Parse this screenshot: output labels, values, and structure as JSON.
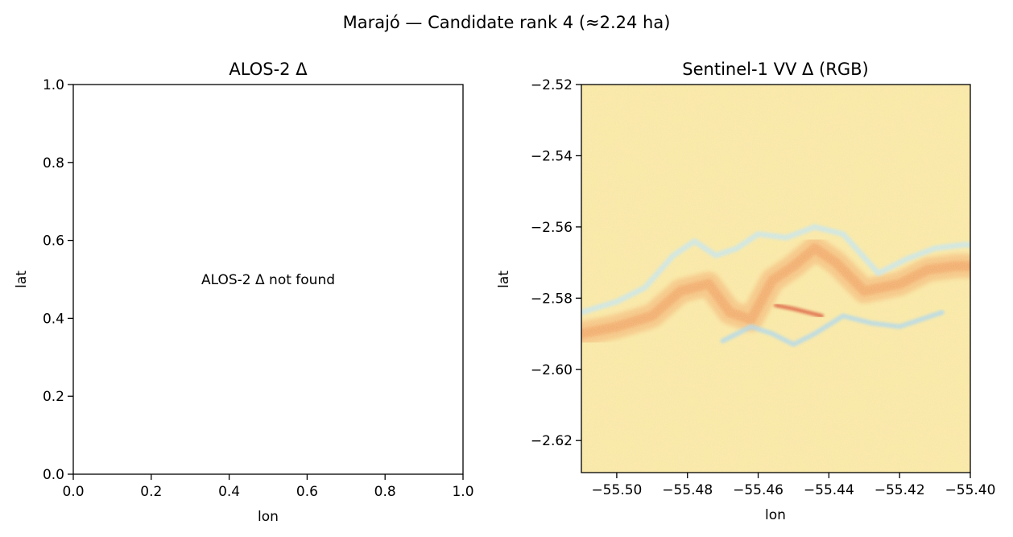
{
  "figure": {
    "suptitle": "Marajó — Candidate rank 4 (≈2.24 ha)"
  },
  "chart_data": [
    {
      "type": "scatter",
      "title": "ALOS-2 Δ",
      "xlabel": "lon",
      "ylabel": "lat",
      "xlim": [
        0.0,
        1.0
      ],
      "ylim": [
        0.0,
        1.0
      ],
      "xticks": [
        0.0,
        0.2,
        0.4,
        0.6,
        0.8,
        1.0
      ],
      "yticks": [
        0.0,
        0.2,
        0.4,
        0.6,
        0.8,
        1.0
      ],
      "xtick_labels": [
        "0.0",
        "0.2",
        "0.4",
        "0.6",
        "0.8",
        "1.0"
      ],
      "ytick_labels": [
        "0.0",
        "0.2",
        "0.4",
        "0.6",
        "0.8",
        "1.0"
      ],
      "annotation": "ALOS-2 Δ not found",
      "series": [],
      "grid": false
    },
    {
      "type": "heatmap",
      "title": "Sentinel-1 VV Δ (RGB)",
      "xlabel": "lon",
      "ylabel": "lat",
      "xlim": [
        -55.51,
        -55.4
      ],
      "ylim": [
        -2.629,
        -2.52
      ],
      "xticks": [
        -55.5,
        -55.48,
        -55.46,
        -55.44,
        -55.42,
        -55.4
      ],
      "yticks": [
        -2.52,
        -2.54,
        -2.56,
        -2.58,
        -2.6,
        -2.62
      ],
      "xtick_labels": [
        "−55.50",
        "−55.48",
        "−55.46",
        "−55.44",
        "−55.42",
        "−55.40"
      ],
      "ytick_labels": [
        "−2.52",
        "−2.54",
        "−2.56",
        "−2.58",
        "−2.60",
        "−2.62"
      ],
      "colormap": "RdYlBu (diverging)",
      "background_color": "#f8e79e",
      "grid": false,
      "features": {
        "orange_band": [
          [
            -55.51,
            -2.59
          ],
          [
            -55.5,
            -2.588
          ],
          [
            -55.49,
            -2.585
          ],
          [
            -55.482,
            -2.578
          ],
          [
            -55.474,
            -2.576
          ],
          [
            -55.468,
            -2.584
          ],
          [
            -55.462,
            -2.586
          ],
          [
            -55.456,
            -2.575
          ],
          [
            -55.45,
            -2.571
          ],
          [
            -55.444,
            -2.566
          ],
          [
            -55.438,
            -2.57
          ],
          [
            -55.43,
            -2.578
          ],
          [
            -55.42,
            -2.576
          ],
          [
            -55.412,
            -2.572
          ],
          [
            -55.404,
            -2.571
          ],
          [
            -55.4,
            -2.571
          ]
        ],
        "blue_edge": [
          [
            -55.51,
            -2.584
          ],
          [
            -55.5,
            -2.581
          ],
          [
            -55.492,
            -2.577
          ],
          [
            -55.484,
            -2.568
          ],
          [
            -55.478,
            -2.564
          ],
          [
            -55.472,
            -2.568
          ],
          [
            -55.466,
            -2.566
          ],
          [
            -55.46,
            -2.562
          ],
          [
            -55.452,
            -2.563
          ],
          [
            -55.444,
            -2.56
          ],
          [
            -55.436,
            -2.562
          ],
          [
            -55.426,
            -2.573
          ],
          [
            -55.418,
            -2.569
          ],
          [
            -55.41,
            -2.566
          ],
          [
            -55.402,
            -2.565
          ],
          [
            -55.4,
            -2.565
          ]
        ],
        "blue_lower": [
          [
            -55.47,
            -2.592
          ],
          [
            -55.462,
            -2.588
          ],
          [
            -55.456,
            -2.59
          ],
          [
            -55.45,
            -2.593
          ],
          [
            -55.444,
            -2.59
          ],
          [
            -55.436,
            -2.585
          ],
          [
            -55.428,
            -2.587
          ],
          [
            -55.42,
            -2.588
          ],
          [
            -55.414,
            -2.586
          ],
          [
            -55.408,
            -2.584
          ]
        ],
        "red_patch": [
          [
            -55.455,
            -2.582
          ],
          [
            -55.45,
            -2.583
          ],
          [
            -55.446,
            -2.584
          ],
          [
            -55.442,
            -2.585
          ]
        ]
      }
    }
  ]
}
